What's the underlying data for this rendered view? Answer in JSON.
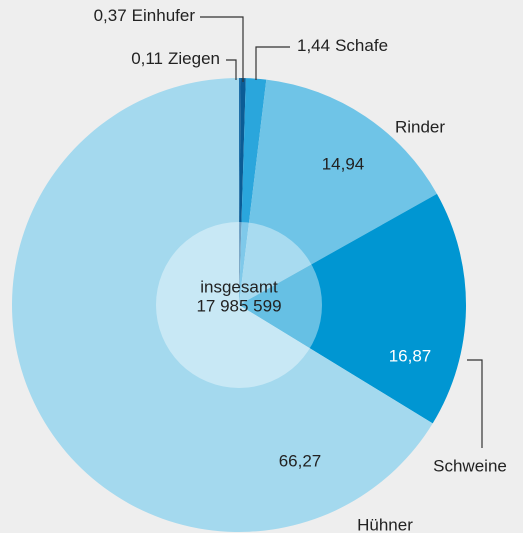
{
  "chart_data": {
    "type": "pie",
    "categories": [
      "Ziegen",
      "Einhufer",
      "Schafe",
      "Rinder",
      "Schweine",
      "Hühner"
    ],
    "values": [
      0.11,
      0.37,
      1.44,
      14.94,
      16.87,
      66.27
    ],
    "value_labels": [
      "0,11",
      "0,37",
      "1,44",
      "14,94",
      "16,87",
      "66,27"
    ],
    "colors": [
      "#1f6fa8",
      "#0b5c95",
      "#2aa6dc",
      "#6fc4e7",
      "#0096d2",
      "#a4d9ee"
    ],
    "center_label": "insgesamt",
    "center_value": "17 985 599"
  }
}
